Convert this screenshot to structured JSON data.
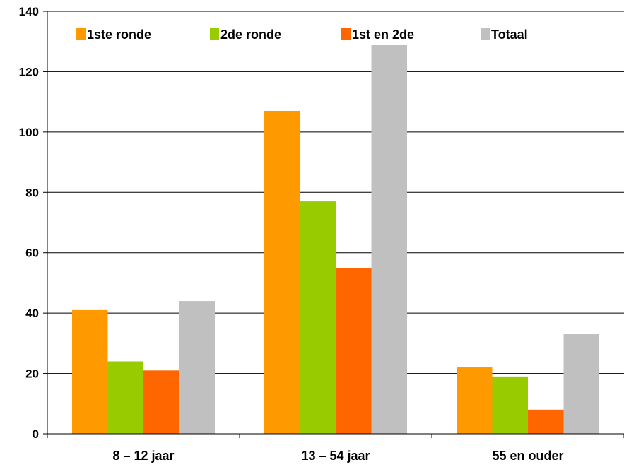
{
  "chart_data": {
    "type": "bar",
    "categories": [
      "8 – 12 jaar",
      "13 – 54 jaar",
      "55 en ouder"
    ],
    "series": [
      {
        "name": "1ste ronde",
        "color": "#FF9900",
        "values": [
          41,
          107,
          22
        ]
      },
      {
        "name": "2de ronde",
        "color": "#99CC00",
        "values": [
          24,
          77,
          19
        ]
      },
      {
        "name": "1st en 2de",
        "color": "#FF6600",
        "values": [
          21,
          55,
          8
        ]
      },
      {
        "name": "Totaal",
        "color": "#C0C0C0",
        "values": [
          44,
          129,
          33
        ]
      }
    ],
    "ylim": [
      0,
      140
    ],
    "yticks": [
      0,
      20,
      40,
      60,
      80,
      100,
      120,
      140
    ],
    "grid": true,
    "legend_position": "top"
  }
}
